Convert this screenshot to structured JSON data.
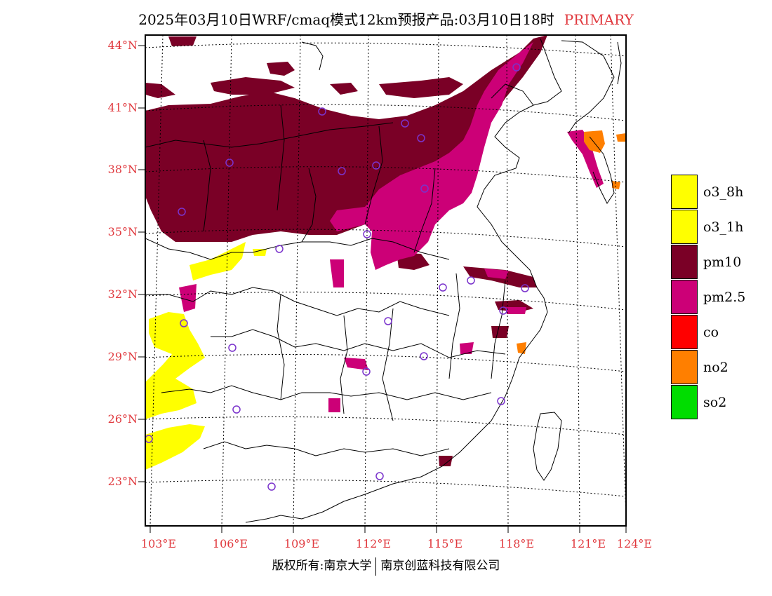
{
  "title": {
    "main": "2025年03月10日WRF/cmaq模式12km预报产品:03月10日18时",
    "tag": "PRIMARY",
    "tag_color": "#e0393e"
  },
  "axes": {
    "lat_labels": [
      "44°N",
      "41°N",
      "38°N",
      "35°N",
      "32°N",
      "29°N",
      "26°N",
      "23°N"
    ],
    "lon_labels": [
      "103°E",
      "106°E",
      "109°E",
      "112°E",
      "115°E",
      "118°E",
      "121°E",
      "124°E"
    ],
    "label_color": "#e0393e"
  },
  "legend": [
    {
      "label": "o3_8h",
      "color": "#ffff00"
    },
    {
      "label": "o3_1h",
      "color": "#ffff00"
    },
    {
      "label": "pm10",
      "color": "#7a0026"
    },
    {
      "label": "pm2.5",
      "color": "#cc0077"
    },
    {
      "label": "co",
      "color": "#ff0000"
    },
    {
      "label": "no2",
      "color": "#ff7f00"
    },
    {
      "label": "so2",
      "color": "#00dd00"
    }
  ],
  "copyright": {
    "left": "版权所有:南京大学",
    "right": "南京创蓝科技有限公司"
  },
  "station_marker_color": "#7a33cc"
}
